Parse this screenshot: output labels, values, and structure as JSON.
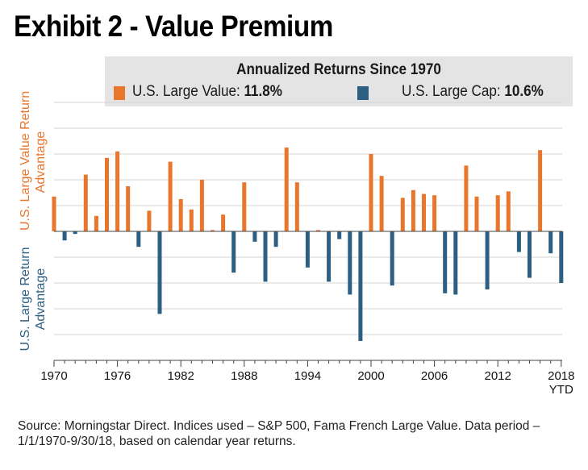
{
  "title": "Exhibit 2 - Value Premium",
  "legend": {
    "title": "Annualized Returns Since 1970",
    "items": [
      {
        "label": "U.S. Large Value: ",
        "value": "11.8%",
        "color": "#e8762c"
      },
      {
        "label": "U.S. Large Cap: ",
        "value": "10.6%",
        "color": "#2d5f82"
      }
    ]
  },
  "ylabel_top": [
    "U.S. Large Value Return",
    "Advantage"
  ],
  "ylabel_bottom": [
    "U.S. Large Return",
    "Advantage"
  ],
  "source": "Source: Morningstar Direct. Indices used – S&P 500, Fama French Large Value. Data period – 1/1/1970-9/30/18, based on calendar year returns.",
  "chart_data": {
    "type": "bar",
    "title": "",
    "xlabel": "",
    "ylabel": "",
    "ylim": [
      -10,
      10
    ],
    "grid": true,
    "x_tick_labels": [
      "1970",
      "1976",
      "1982",
      "1988",
      "1994",
      "2000",
      "2006",
      "2012",
      "2018"
    ],
    "x_tick_sub": "YTD",
    "positive_color": "#e8762c",
    "negative_color": "#2d5f82",
    "categories": [
      1970,
      1971,
      1972,
      1973,
      1974,
      1975,
      1976,
      1977,
      1978,
      1979,
      1980,
      1981,
      1982,
      1983,
      1984,
      1985,
      1986,
      1987,
      1988,
      1989,
      1990,
      1991,
      1992,
      1993,
      1994,
      1995,
      1996,
      1997,
      1998,
      1999,
      2000,
      2001,
      2002,
      2003,
      2004,
      2005,
      2006,
      2007,
      2008,
      2009,
      2010,
      2011,
      2012,
      2013,
      2014,
      2015,
      2016,
      2017,
      2018
    ],
    "values": [
      2.7,
      -0.7,
      -0.2,
      4.4,
      1.2,
      5.7,
      6.2,
      3.5,
      -1.2,
      1.6,
      -6.4,
      5.4,
      2.5,
      1.7,
      4.0,
      0.1,
      1.3,
      -3.2,
      3.8,
      -0.8,
      -3.9,
      -1.2,
      6.5,
      3.8,
      -2.8,
      0.1,
      -3.9,
      -0.6,
      -4.9,
      -8.5,
      6.0,
      4.3,
      -4.2,
      2.6,
      3.2,
      2.9,
      2.8,
      -4.8,
      -4.9,
      5.1,
      2.7,
      -4.5,
      2.8,
      3.1,
      -1.6,
      -3.6,
      6.3,
      -1.7,
      -4.0
    ]
  }
}
